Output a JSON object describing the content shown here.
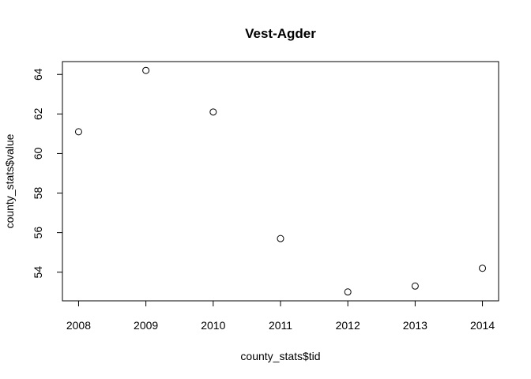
{
  "chart_data": {
    "type": "scatter",
    "title": "Vest-Agder",
    "xlabel": "county_stats$tid",
    "ylabel": "county_stats$value",
    "x": [
      2008,
      2009,
      2010,
      2011,
      2012,
      2013,
      2014
    ],
    "y": [
      61.1,
      64.2,
      62.1,
      55.7,
      53.0,
      53.3,
      54.2
    ],
    "x_ticks": [
      2008,
      2009,
      2010,
      2011,
      2012,
      2013,
      2014
    ],
    "y_ticks": [
      54,
      56,
      58,
      60,
      62,
      64
    ],
    "xlim": [
      2007.76,
      2014.24
    ],
    "ylim": [
      52.552,
      64.648
    ],
    "grid": false,
    "marker": "open-circle"
  }
}
